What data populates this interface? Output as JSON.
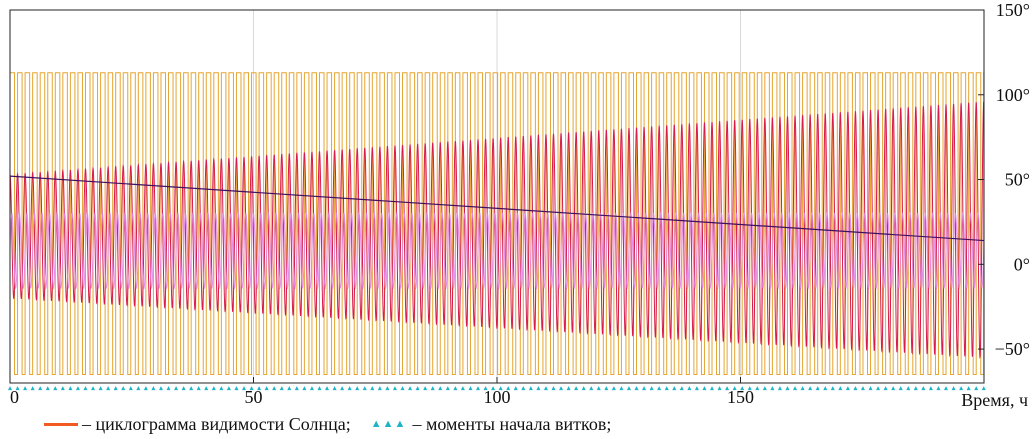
{
  "chart_data": {
    "type": "line",
    "xlabel": "Время, ч",
    "ylabel": "",
    "xlim": [
      0,
      200
    ],
    "ylim": [
      -70,
      150
    ],
    "x_ticks": [
      {
        "value": 0,
        "label": "0"
      },
      {
        "value": 50,
        "label": "50"
      },
      {
        "value": 100,
        "label": "100"
      },
      {
        "value": 150,
        "label": "150"
      }
    ],
    "y_ticks": [
      {
        "value": 150,
        "label": "150°"
      },
      {
        "value": 100,
        "label": "100°"
      },
      {
        "value": 50,
        "label": "50°"
      },
      {
        "value": 0,
        "label": "0°"
      },
      {
        "value": -50,
        "label": "−50°"
      }
    ],
    "grid": true,
    "y_axis_side": "right",
    "orbit_period_h": 1.55,
    "series": [
      {
        "key": "visibility",
        "style": "square-wave",
        "color": "#e6a531",
        "high": 113,
        "low": -65,
        "period_h": 1.55,
        "duty": 0.6
      },
      {
        "key": "beta_envelope",
        "style": "oscillation",
        "color": "#d81b4c",
        "upper_start": 53,
        "upper_end": 96,
        "lower_start": -20,
        "lower_end": -55,
        "period_h": 1.55
      },
      {
        "key": "inner_oscillation",
        "style": "oscillation",
        "color": "#e184e8",
        "amplitude": 22,
        "center": 8,
        "period_h": 1.55
      },
      {
        "key": "trend",
        "style": "line",
        "color": "#3d1060",
        "x": [
          0,
          200
        ],
        "y": [
          52,
          14
        ]
      },
      {
        "key": "orbit_starts",
        "style": "markers",
        "color": "#1cb5c5",
        "y": -73,
        "period_h": 1.55
      }
    ]
  },
  "legend": {
    "items": [
      {
        "label": "– циклограмма видимости Солнца;",
        "color": "#f25a22",
        "symbol": "line"
      },
      {
        "label": "– моменты начала витков;",
        "color": "#1cb5c5",
        "symbol": "▲▲▲"
      }
    ]
  }
}
